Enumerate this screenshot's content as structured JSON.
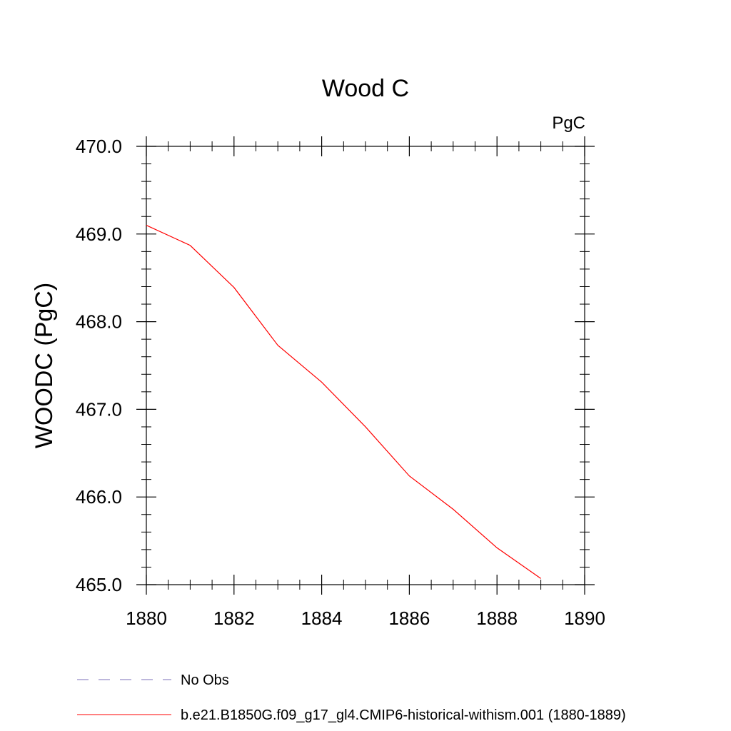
{
  "chart_data": {
    "type": "line",
    "title": "Wood C",
    "units": "PgC",
    "xlabel": "",
    "ylabel": "WOODC  (PgC)",
    "xlim": [
      1880,
      1890
    ],
    "ylim": [
      465.0,
      470.0
    ],
    "xticks": [
      1880,
      1882,
      1884,
      1886,
      1888,
      1890
    ],
    "xtick_labels": [
      "1880",
      "1882",
      "1884",
      "1886",
      "1888",
      "1890"
    ],
    "yticks": [
      465.0,
      466.0,
      467.0,
      468.0,
      469.0,
      470.0
    ],
    "ytick_labels": [
      "465.0",
      "466.0",
      "467.0",
      "468.0",
      "469.0",
      "470.0"
    ],
    "grid": false,
    "legend_position": "bottom",
    "series": [
      {
        "name": "No Obs",
        "color": "#7b6fb8",
        "style": "dashed",
        "x": [],
        "y": []
      },
      {
        "name": "b.e21.B1850G.f09_g17_gl4.CMIP6-historical-withism.001 (1880-1889)",
        "color": "#ff0000",
        "style": "solid",
        "x": [
          1880,
          1881,
          1882,
          1883,
          1884,
          1885,
          1886,
          1887,
          1888,
          1889
        ],
        "y": [
          469.1,
          468.87,
          468.39,
          467.73,
          467.31,
          466.8,
          466.24,
          465.86,
          465.42,
          465.07
        ]
      }
    ]
  }
}
